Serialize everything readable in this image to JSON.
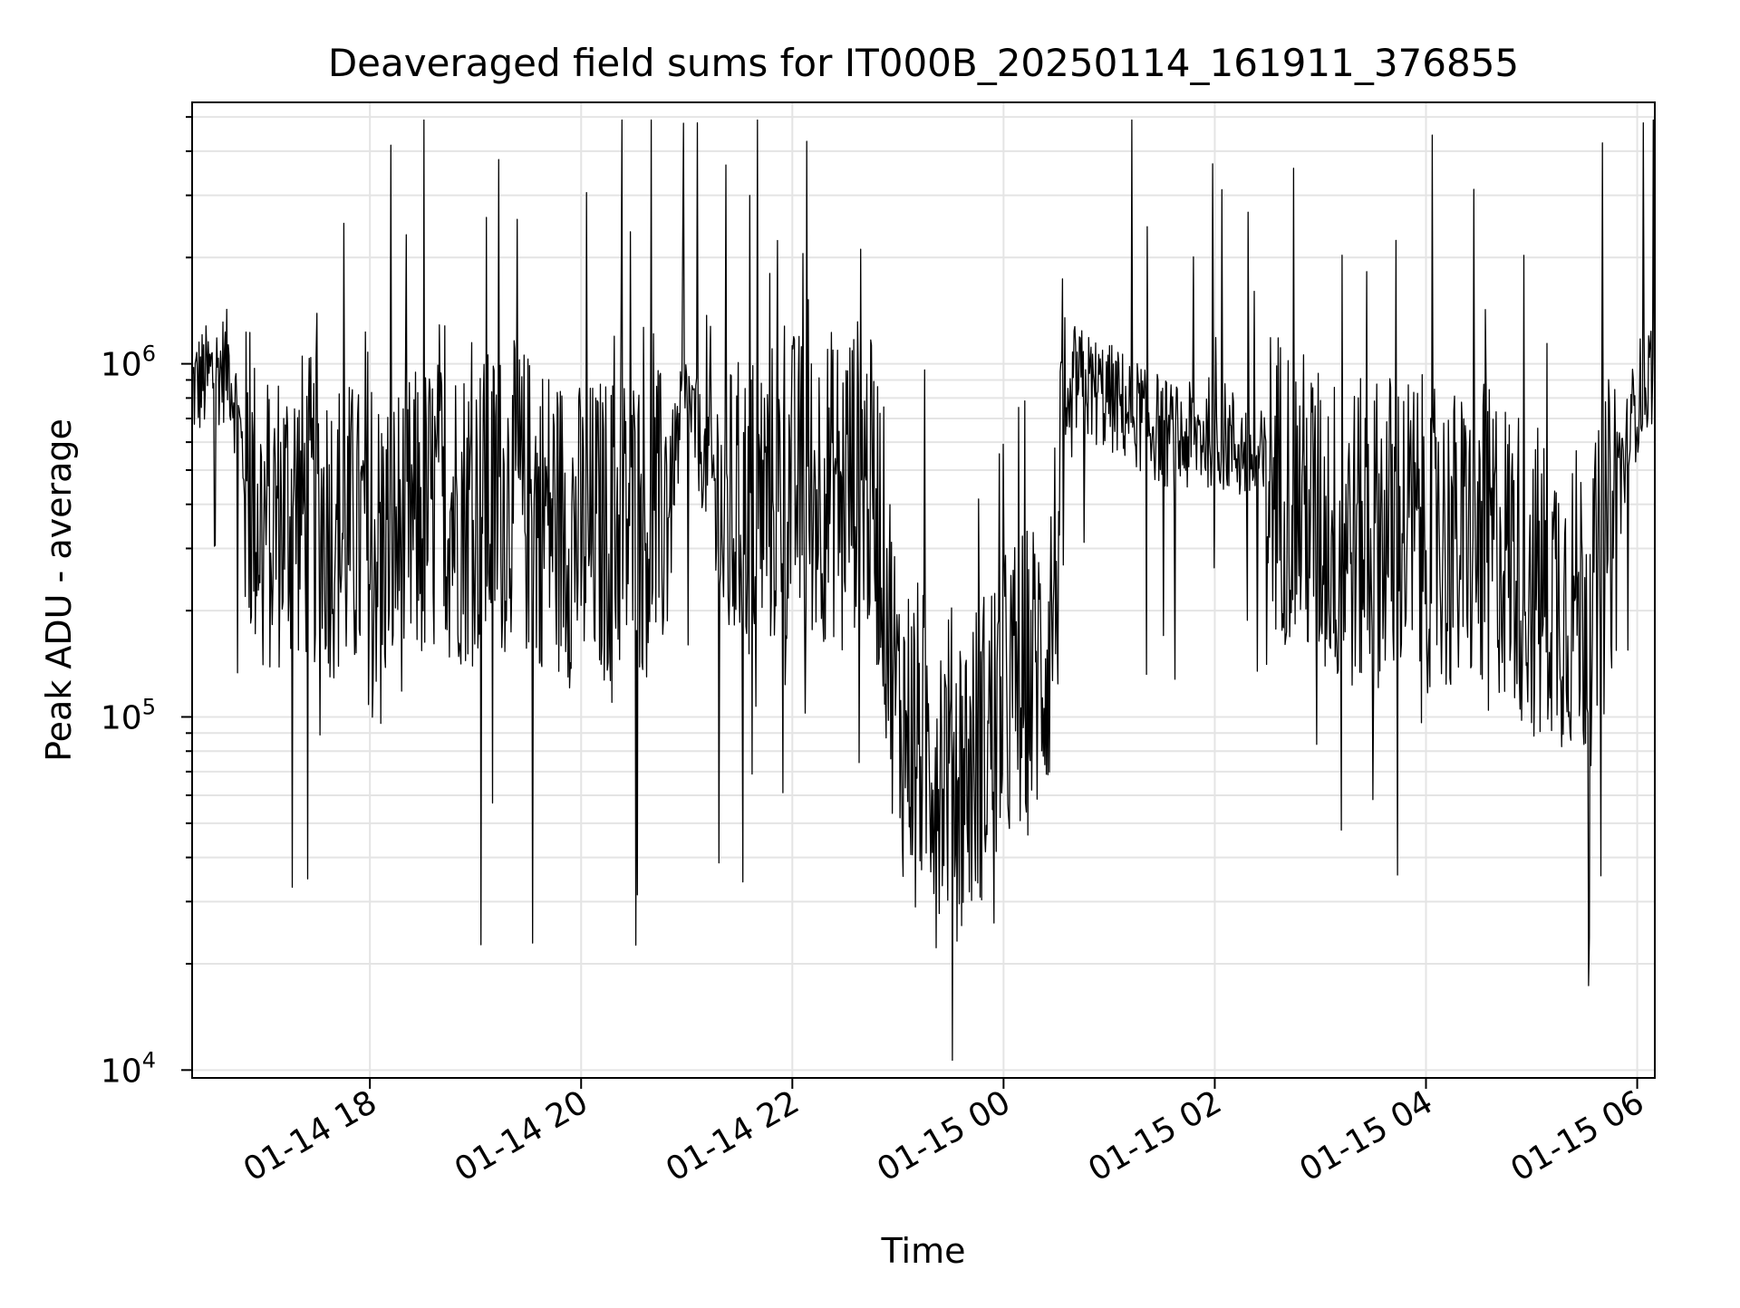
{
  "chart_data": {
    "type": "line",
    "title": "Deaveraged field sums for IT000B_20250114_161911_376855",
    "xlabel": "Time",
    "ylabel": "Peak ADU - average",
    "yscale": "log",
    "ylim": [
      9500,
      5500000
    ],
    "xlim": [
      "2025-01-14 16:19",
      "2025-01-15 06:10"
    ],
    "grid": true,
    "x_ticks": [
      {
        "value": "2025-01-14 18:00",
        "label": "01-14 18"
      },
      {
        "value": "2025-01-14 20:00",
        "label": "01-14 20"
      },
      {
        "value": "2025-01-14 22:00",
        "label": "01-14 22"
      },
      {
        "value": "2025-01-15 00:00",
        "label": "01-15 00"
      },
      {
        "value": "2025-01-15 02:00",
        "label": "01-15 02"
      },
      {
        "value": "2025-01-15 04:00",
        "label": "01-15 04"
      },
      {
        "value": "2025-01-15 06:00",
        "label": "01-15 06"
      }
    ],
    "y_ticks": [
      {
        "value": 10000,
        "base": "10",
        "exp": "4"
      },
      {
        "value": 100000,
        "base": "10",
        "exp": "5"
      },
      {
        "value": 1000000,
        "base": "10",
        "exp": "6"
      }
    ],
    "series": [
      {
        "color": "#000000",
        "x": [
          "2025-01-14 16:19",
          "2025-01-14 16:40",
          "2025-01-14 16:45",
          "2025-01-14 16:50",
          "2025-01-14 17:00",
          "2025-01-14 17:20",
          "2025-01-14 17:40",
          "2025-01-14 18:00",
          "2025-01-14 18:20",
          "2025-01-14 18:40",
          "2025-01-14 19:00",
          "2025-01-14 19:20",
          "2025-01-14 19:40",
          "2025-01-14 20:00",
          "2025-01-14 20:15",
          "2025-01-14 20:30",
          "2025-01-14 20:45",
          "2025-01-14 21:00",
          "2025-01-14 21:20",
          "2025-01-14 21:40",
          "2025-01-14 22:00",
          "2025-01-14 22:20",
          "2025-01-14 22:40",
          "2025-01-14 22:50",
          "2025-01-14 23:00",
          "2025-01-14 23:20",
          "2025-01-14 23:40",
          "2025-01-15 00:00",
          "2025-01-15 00:15",
          "2025-01-15 00:25",
          "2025-01-15 00:40",
          "2025-01-15 01:00",
          "2025-01-15 01:20",
          "2025-01-15 01:40",
          "2025-01-15 02:00",
          "2025-01-15 02:20",
          "2025-01-15 02:40",
          "2025-01-15 03:00",
          "2025-01-15 03:20",
          "2025-01-15 03:40",
          "2025-01-15 04:00",
          "2025-01-15 04:20",
          "2025-01-15 04:40",
          "2025-01-15 05:00",
          "2025-01-15 05:20",
          "2025-01-15 05:35",
          "2025-01-15 05:45",
          "2025-01-15 06:00",
          "2025-01-15 06:10"
        ],
        "y": [
          850000,
          1000000,
          700000,
          450000,
          350000,
          400000,
          350000,
          300000,
          330000,
          400000,
          380000,
          420000,
          380000,
          320000,
          340000,
          360000,
          350000,
          800000,
          350000,
          400000,
          450000,
          450000,
          500000,
          350000,
          100000,
          80000,
          70000,
          110000,
          130000,
          150000,
          900000,
          800000,
          700000,
          600000,
          650000,
          550000,
          450000,
          350000,
          320000,
          350000,
          330000,
          300000,
          320000,
          250000,
          220000,
          200000,
          350000,
          800000,
          1000000
        ]
      }
    ]
  }
}
